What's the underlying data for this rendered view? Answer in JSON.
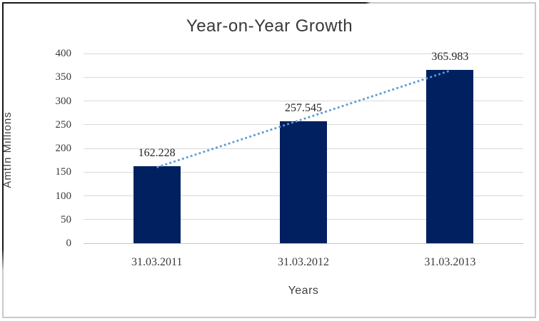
{
  "chart_data": {
    "type": "bar",
    "title": "Year-on-Year Growth",
    "xlabel": "Years",
    "ylabel": "AmtIn Millions",
    "categories": [
      "31.03.2011",
      "31.03.2012",
      "31.03.2013"
    ],
    "values": [
      162.228,
      257.545,
      365.983
    ],
    "data_labels": [
      "162.228",
      "257.545",
      "365.983"
    ],
    "y_ticks": [
      0,
      50,
      100,
      150,
      200,
      250,
      300,
      350,
      400
    ],
    "ylim": [
      0,
      400
    ],
    "grid": true,
    "legend": "none",
    "trendline": {
      "type": "linear",
      "style": "dotted"
    },
    "colors": {
      "bar": "#002060",
      "trendline": "#5b9bd5",
      "gridline": "#d9d9d9",
      "axis_line": "#c6c6c6",
      "text": "#3a3a3a",
      "title": "#383838"
    }
  }
}
